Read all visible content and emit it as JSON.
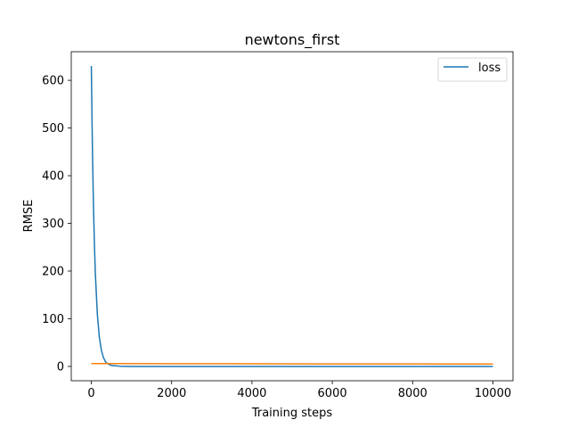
{
  "chart_data": {
    "type": "line",
    "title": "newtons_first",
    "xlabel": "Training steps",
    "ylabel": "RMSE",
    "xlim": [
      -500,
      10500
    ],
    "ylim": [
      -30,
      660
    ],
    "xticks": [
      0,
      2000,
      4000,
      6000,
      8000,
      10000
    ],
    "yticks": [
      0,
      100,
      200,
      300,
      400,
      500,
      600
    ],
    "grid": false,
    "legend": {
      "position": "top-right",
      "entries": [
        "loss"
      ]
    },
    "series": [
      {
        "name": "loss",
        "color": "#1f77b4",
        "x": [
          0,
          25,
          50,
          75,
          100,
          150,
          200,
          250,
          300,
          350,
          400,
          500,
          700,
          1000,
          2000,
          4000,
          6000,
          8000,
          10000
        ],
        "y": [
          630,
          470,
          350,
          262,
          195,
          109,
          61,
          34,
          19,
          10,
          6,
          2,
          0.5,
          0,
          0,
          0,
          0,
          0,
          0
        ]
      },
      {
        "color": "#ff7f0e",
        "x": [
          0,
          2000,
          4000,
          6000,
          8000,
          10000
        ],
        "y": [
          6,
          5.8,
          5.6,
          5.4,
          5.2,
          5
        ]
      }
    ]
  }
}
